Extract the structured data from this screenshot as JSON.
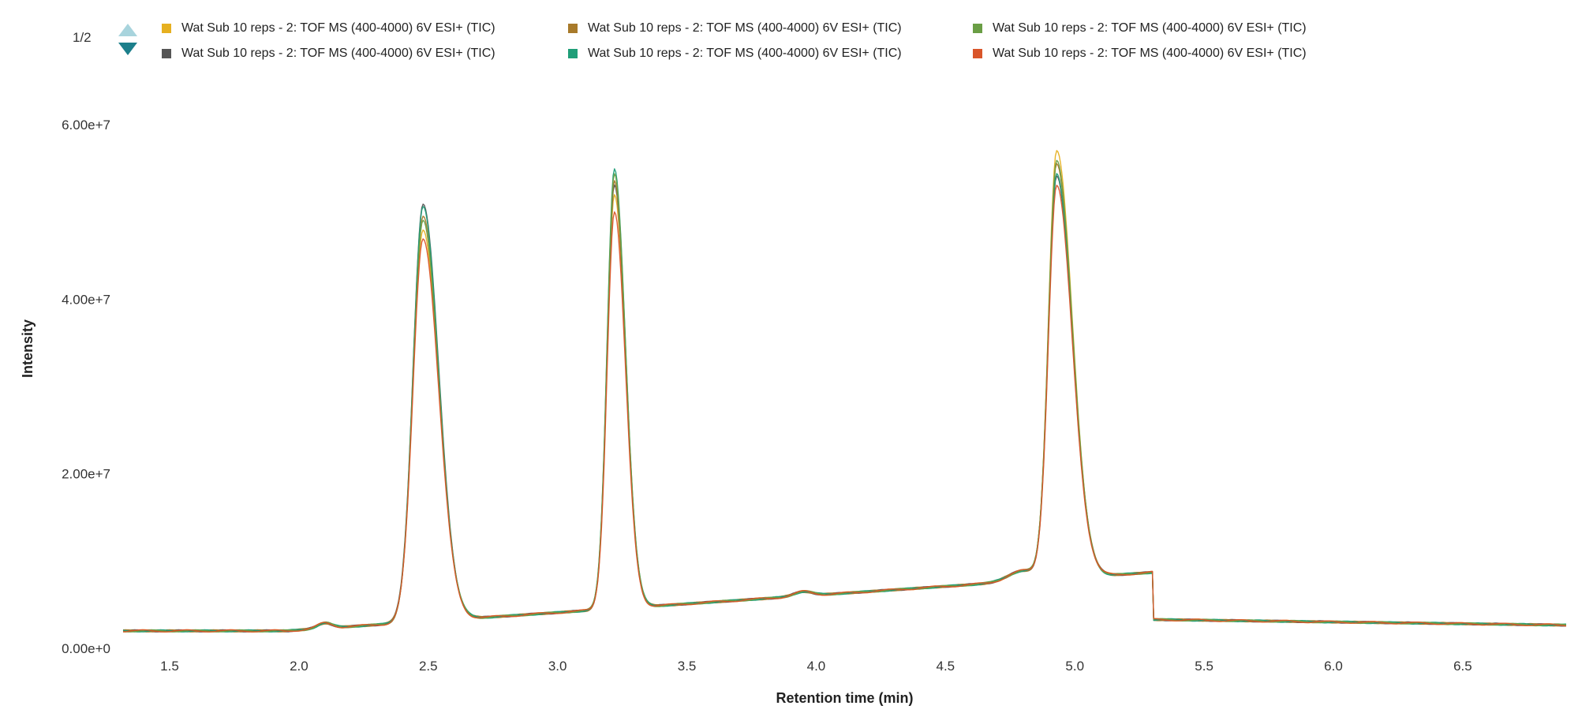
{
  "pager": {
    "text": "1/2"
  },
  "chart_data": {
    "type": "line",
    "xlabel": "Retention time (min)",
    "ylabel": "Intensity",
    "xlim": [
      1.32,
      6.9
    ],
    "ylim": [
      0,
      60000000
    ],
    "xticks": [
      1.5,
      2.0,
      2.5,
      3.0,
      3.5,
      4.0,
      4.5,
      5.0,
      5.5,
      6.0,
      6.5
    ],
    "xtick_labels": [
      "1.5",
      "2.0",
      "2.5",
      "3.0",
      "3.5",
      "4.0",
      "4.5",
      "5.0",
      "5.5",
      "6.0",
      "6.5"
    ],
    "yticks": [
      0,
      20000000,
      40000000,
      60000000
    ],
    "ytick_labels": [
      "0.00e+0",
      "2.00e+7",
      "4.00e+7",
      "6.00e+7"
    ],
    "grid": false,
    "legend_position": "top",
    "x": [
      1.32,
      1.5,
      1.7,
      1.9,
      2.0,
      2.05,
      2.1,
      2.15,
      2.2,
      2.25,
      2.3,
      2.35,
      2.4,
      2.43,
      2.46,
      2.48,
      2.5,
      2.53,
      2.56,
      2.6,
      2.65,
      2.7,
      2.8,
      2.9,
      3.0,
      3.1,
      3.15,
      3.18,
      3.2,
      3.22,
      3.24,
      3.27,
      3.3,
      3.35,
      3.4,
      3.5,
      3.7,
      3.85,
      3.95,
      4.1,
      4.3,
      4.5,
      4.6,
      4.7,
      4.8,
      4.85,
      4.88,
      4.91,
      4.93,
      4.95,
      4.98,
      5.02,
      5.07,
      5.15,
      5.25,
      5.4,
      5.6,
      5.8,
      6.0,
      6.2,
      6.4,
      6.6,
      6.9
    ],
    "series": [
      {
        "name": "Wat Sub 10 reps - 2: TOF MS (400-4000) 6V ESI+ (TIC)",
        "color": "#e6b020",
        "peaks": [
          48000000,
          52000000,
          57000000
        ]
      },
      {
        "name": "Wat Sub 10 reps - 2: TOF MS (400-4000) 6V ESI+ (TIC)",
        "color": "#555555",
        "peaks": [
          51000000,
          53000000,
          54000000
        ]
      },
      {
        "name": "Wat Sub 10 reps - 2: TOF MS (400-4000) 6V ESI+ (TIC)",
        "color": "#a87a2a",
        "peaks": [
          49500000,
          53500000,
          55500000
        ]
      },
      {
        "name": "Wat Sub 10 reps - 2: TOF MS (400-4000) 6V ESI+ (TIC)",
        "color": "#1f9e78",
        "peaks": [
          50500000,
          55000000,
          54500000
        ]
      },
      {
        "name": "Wat Sub 10 reps - 2: TOF MS (400-4000) 6V ESI+ (TIC)",
        "color": "#6a9e45",
        "peaks": [
          49000000,
          54500000,
          56000000
        ]
      },
      {
        "name": "Wat Sub 10 reps - 2: TOF MS (400-4000) 6V ESI+ (TIC)",
        "color": "#d9552a",
        "peaks": [
          47000000,
          50000000,
          53000000
        ]
      }
    ]
  }
}
